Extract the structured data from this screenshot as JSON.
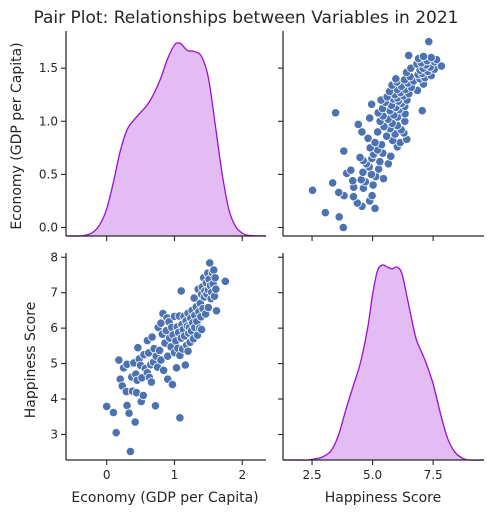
{
  "chart_data": {
    "type": "pairplot",
    "title": "Pair Plot: Relationships between Variables in 2021",
    "variables": [
      "Economy (GDP per Capita)",
      "Happiness Score"
    ],
    "colors": {
      "points": "#4c72b0",
      "kde_fill": "#e2b8f2",
      "kde_line": "#9a10cf"
    },
    "panels": {
      "gdp_kde": {
        "type": "area",
        "xlim": [
          -0.6,
          2.35
        ],
        "ylim": [
          0,
          1.0
        ],
        "x": [
          -0.6,
          -0.4,
          -0.3,
          -0.2,
          -0.1,
          0.0,
          0.1,
          0.2,
          0.3,
          0.4,
          0.5,
          0.6,
          0.7,
          0.8,
          0.9,
          1.0,
          1.05,
          1.1,
          1.15,
          1.2,
          1.3,
          1.4,
          1.5,
          1.6,
          1.7,
          1.8,
          1.9,
          2.0,
          2.1,
          2.35
        ],
        "density": [
          0.0,
          0.0,
          0.005,
          0.02,
          0.06,
          0.14,
          0.28,
          0.44,
          0.55,
          0.6,
          0.64,
          0.68,
          0.74,
          0.82,
          0.92,
          0.99,
          1.0,
          0.995,
          0.975,
          0.96,
          0.955,
          0.93,
          0.82,
          0.58,
          0.33,
          0.14,
          0.05,
          0.015,
          0.003,
          0.0
        ]
      },
      "happiness_kde": {
        "type": "area",
        "xlim": [
          1.3,
          9.6
        ],
        "ylim": [
          0,
          1.0
        ],
        "x": [
          1.3,
          1.8,
          2.3,
          2.8,
          3.0,
          3.3,
          3.6,
          3.9,
          4.2,
          4.5,
          4.8,
          5.0,
          5.2,
          5.4,
          5.6,
          5.8,
          6.0,
          6.2,
          6.4,
          6.6,
          6.8,
          7.0,
          7.2,
          7.5,
          7.8,
          8.1,
          8.4,
          8.7,
          9.0,
          9.6
        ],
        "density": [
          0.0,
          0.0,
          0.0,
          0.01,
          0.02,
          0.05,
          0.13,
          0.26,
          0.38,
          0.5,
          0.68,
          0.85,
          0.97,
          1.0,
          0.99,
          0.98,
          0.99,
          0.96,
          0.85,
          0.73,
          0.62,
          0.56,
          0.5,
          0.39,
          0.24,
          0.11,
          0.04,
          0.01,
          0.0,
          0.0
        ]
      },
      "scatter": {
        "type": "scatter",
        "points": [
          [
            0.0,
            3.79
          ],
          [
            0.1,
            3.62
          ],
          [
            0.14,
            3.05
          ],
          [
            0.18,
            5.1
          ],
          [
            0.2,
            4.56
          ],
          [
            0.23,
            4.37
          ],
          [
            0.25,
            4.88
          ],
          [
            0.29,
            4.21
          ],
          [
            0.3,
            3.82
          ],
          [
            0.3,
            4.98
          ],
          [
            0.33,
            3.6
          ],
          [
            0.35,
            2.52
          ],
          [
            0.37,
            4.62
          ],
          [
            0.38,
            4.22
          ],
          [
            0.4,
            5.02
          ],
          [
            0.42,
            3.35
          ],
          [
            0.43,
            4.7
          ],
          [
            0.44,
            4.18
          ],
          [
            0.45,
            4.53
          ],
          [
            0.46,
            5.45
          ],
          [
            0.48,
            5.13
          ],
          [
            0.5,
            4.95
          ],
          [
            0.51,
            3.93
          ],
          [
            0.52,
            4.6
          ],
          [
            0.54,
            4.1
          ],
          [
            0.55,
            5.25
          ],
          [
            0.57,
            4.86
          ],
          [
            0.6,
            4.74
          ],
          [
            0.6,
            5.65
          ],
          [
            0.62,
            5.3
          ],
          [
            0.63,
            4.61
          ],
          [
            0.65,
            4.97
          ],
          [
            0.66,
            4.48
          ],
          [
            0.67,
            5.75
          ],
          [
            0.69,
            5.04
          ],
          [
            0.7,
            5.42
          ],
          [
            0.72,
            3.81
          ],
          [
            0.73,
            5.21
          ],
          [
            0.75,
            4.9
          ],
          [
            0.76,
            6.02
          ],
          [
            0.78,
            5.37
          ],
          [
            0.8,
            6.14
          ],
          [
            0.8,
            5.1
          ],
          [
            0.82,
            5.83
          ],
          [
            0.83,
            6.41
          ],
          [
            0.84,
            4.81
          ],
          [
            0.86,
            5.58
          ],
          [
            0.88,
            5.93
          ],
          [
            0.89,
            6.29
          ],
          [
            0.9,
            5.21
          ],
          [
            0.9,
            4.56
          ],
          [
            0.92,
            6.18
          ],
          [
            0.93,
            5.72
          ],
          [
            0.95,
            5.47
          ],
          [
            0.96,
            6.02
          ],
          [
            0.97,
            4.41
          ],
          [
            0.98,
            5.81
          ],
          [
            1.0,
            5.31
          ],
          [
            1.0,
            6.33
          ],
          [
            1.02,
            5.64
          ],
          [
            1.03,
            4.88
          ],
          [
            1.04,
            6.03
          ],
          [
            1.05,
            5.43
          ],
          [
            1.06,
            5.88
          ],
          [
            1.07,
            6.34
          ],
          [
            1.08,
            5.23
          ],
          [
            1.08,
            3.47
          ],
          [
            1.1,
            5.72
          ],
          [
            1.1,
            7.05
          ],
          [
            1.11,
            6.1
          ],
          [
            1.12,
            5.41
          ],
          [
            1.13,
            5.96
          ],
          [
            1.14,
            6.33
          ],
          [
            1.15,
            5.78
          ],
          [
            1.16,
            4.96
          ],
          [
            1.17,
            6.2
          ],
          [
            1.18,
            5.52
          ],
          [
            1.19,
            6.06
          ],
          [
            1.2,
            5.35
          ],
          [
            1.2,
            6.42
          ],
          [
            1.21,
            5.86
          ],
          [
            1.22,
            6.02
          ],
          [
            1.23,
            5.6
          ],
          [
            1.24,
            6.28
          ],
          [
            1.25,
            5.92
          ],
          [
            1.26,
            6.5
          ],
          [
            1.27,
            6.15
          ],
          [
            1.28,
            5.7
          ],
          [
            1.29,
            6.85
          ],
          [
            1.3,
            6.36
          ],
          [
            1.3,
            6.02
          ],
          [
            1.32,
            6.6
          ],
          [
            1.33,
            6.19
          ],
          [
            1.34,
            5.8
          ],
          [
            1.35,
            7.1
          ],
          [
            1.36,
            6.46
          ],
          [
            1.37,
            6.0
          ],
          [
            1.38,
            6.7
          ],
          [
            1.39,
            6.32
          ],
          [
            1.4,
            6.95
          ],
          [
            1.4,
            5.96
          ],
          [
            1.41,
            7.16
          ],
          [
            1.42,
            6.55
          ],
          [
            1.43,
            7.42
          ],
          [
            1.44,
            6.88
          ],
          [
            1.45,
            7.05
          ],
          [
            1.46,
            6.4
          ],
          [
            1.47,
            7.28
          ],
          [
            1.48,
            6.96
          ],
          [
            1.49,
            7.55
          ],
          [
            1.5,
            7.08
          ],
          [
            1.5,
            6.58
          ],
          [
            1.51,
            7.38
          ],
          [
            1.52,
            7.84
          ],
          [
            1.53,
            7.2
          ],
          [
            1.54,
            6.83
          ],
          [
            1.55,
            7.01
          ],
          [
            1.56,
            7.56
          ],
          [
            1.57,
            7.25
          ],
          [
            1.58,
            7.64
          ],
          [
            1.59,
            6.9
          ],
          [
            1.6,
            7.42
          ],
          [
            1.61,
            7.1
          ],
          [
            1.62,
            6.49
          ],
          [
            1.75,
            7.32
          ]
        ]
      }
    },
    "gdp_axis": {
      "ticks": [
        0,
        1,
        2
      ],
      "tick_labels": [
        "0",
        "1",
        "2"
      ],
      "lim": [
        -0.6,
        2.35
      ]
    },
    "gdp_row_axis": {
      "ticks": [
        0.0,
        0.5,
        1.0,
        1.5
      ],
      "tick_labels": [
        "0.0",
        "0.5",
        "1.0",
        "1.5"
      ],
      "lim": [
        -0.08,
        1.85
      ]
    },
    "happiness_axis": {
      "ticks": [
        2.5,
        5.0,
        7.5
      ],
      "tick_labels": [
        "2.5",
        "5.0",
        "7.5"
      ],
      "lim": [
        1.3,
        9.6
      ]
    },
    "happiness_row_axis": {
      "ticks": [
        3,
        4,
        5,
        6,
        7,
        8
      ],
      "tick_labels": [
        "3",
        "4",
        "5",
        "6",
        "7",
        "8"
      ],
      "lim": [
        2.28,
        8.12
      ]
    },
    "xlabels": [
      "Economy (GDP per Capita)",
      "Happiness Score"
    ],
    "ylabels": [
      "Economy (GDP per Capita)",
      "Happiness Score"
    ],
    "grid": false,
    "legend": "none"
  }
}
